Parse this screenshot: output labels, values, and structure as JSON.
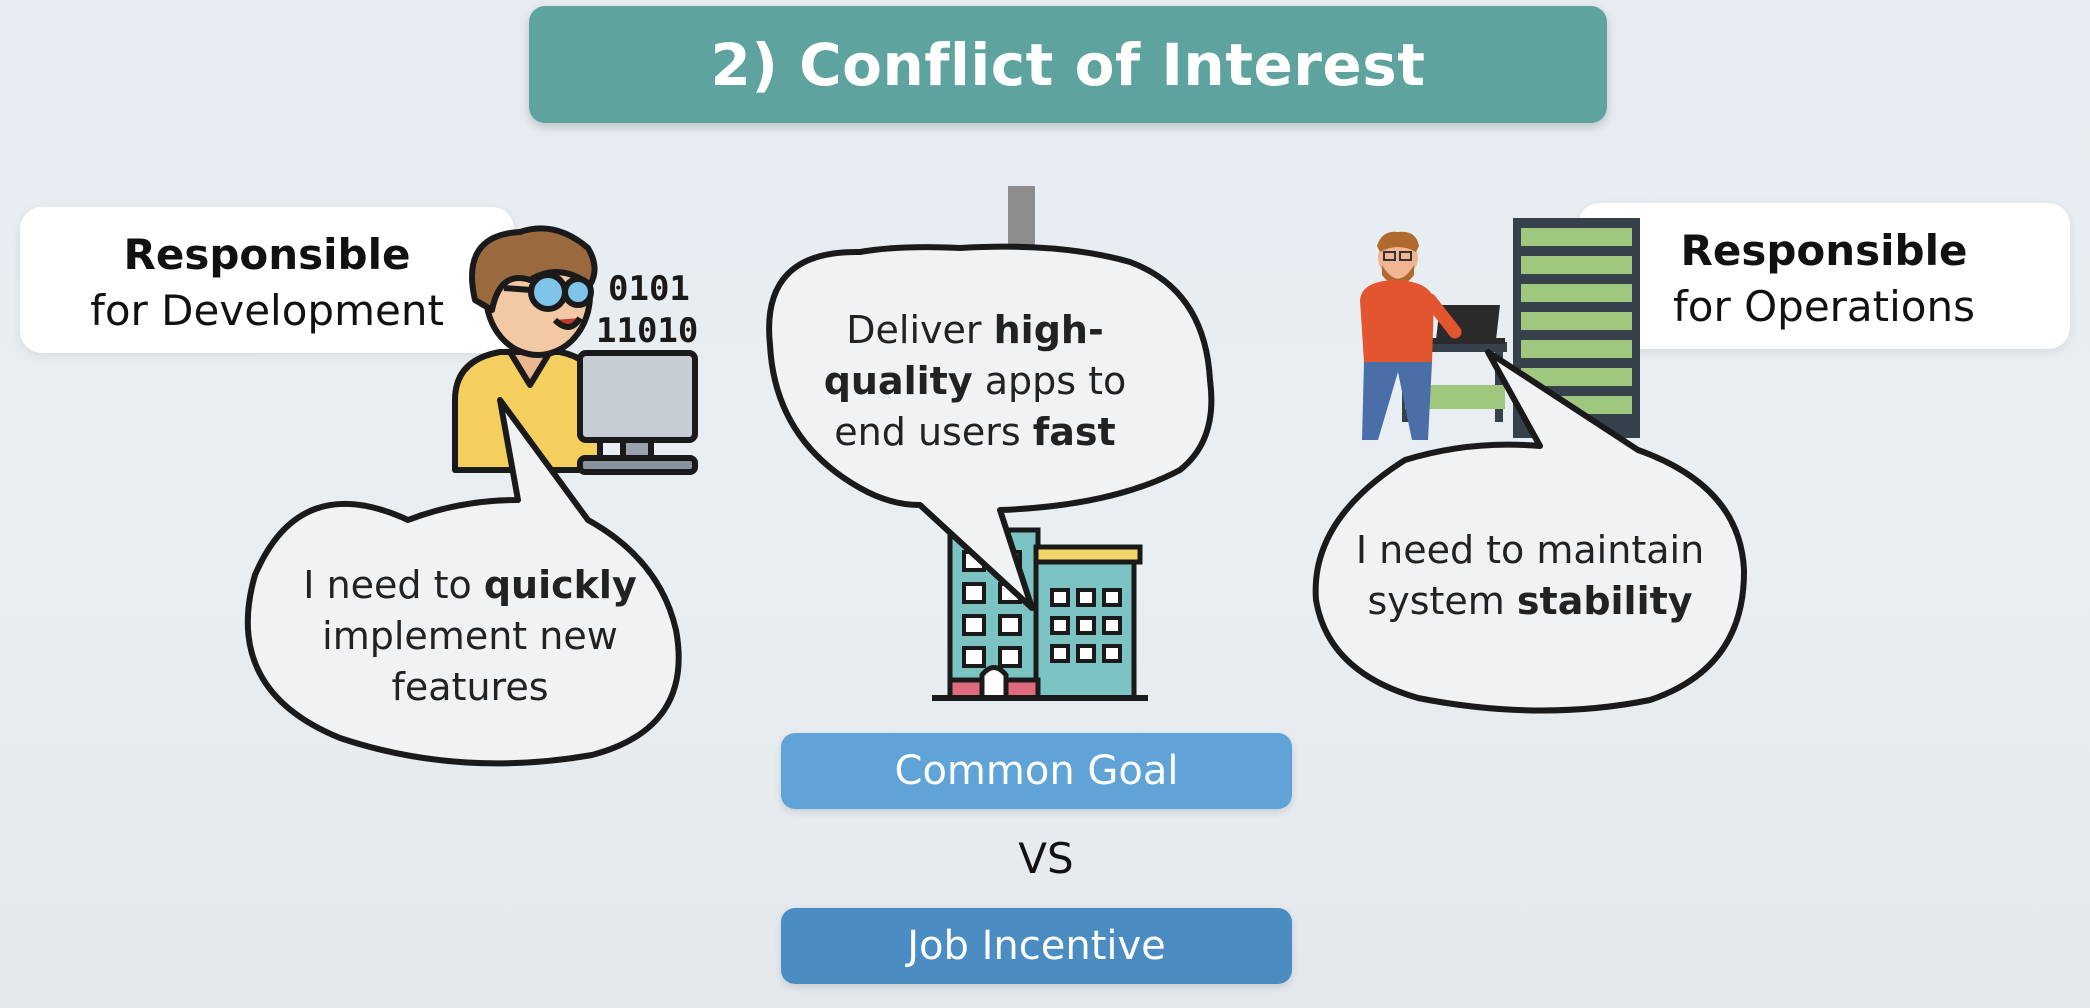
{
  "title": "2) Conflict of Interest",
  "dev": {
    "role_bold": "Responsible",
    "role_rest": "for Development",
    "bubble": [
      "I need to ",
      "quickly",
      " implement new features"
    ]
  },
  "ops": {
    "role_bold": "Responsible",
    "role_rest": "for Operations",
    "bubble": [
      "I need to maintain system ",
      "stability"
    ]
  },
  "company": {
    "bubble": [
      "Deliver ",
      "high-quality",
      " apps to end users ",
      "fast"
    ]
  },
  "common_goal": "Common Goal",
  "vs": "VS",
  "job_incentive": "Job Incentive",
  "icons": [
    "developer-illustration-icon",
    "binary-code-icon",
    "monitor-icon",
    "office-building-icon",
    "ops-engineer-illustration-icon",
    "server-rack-icon",
    "laptop-icon"
  ],
  "colors": {
    "title_bg": "#5fa39f",
    "pill_goal": "#5fa3d7",
    "pill_job": "#4b8cc3"
  }
}
